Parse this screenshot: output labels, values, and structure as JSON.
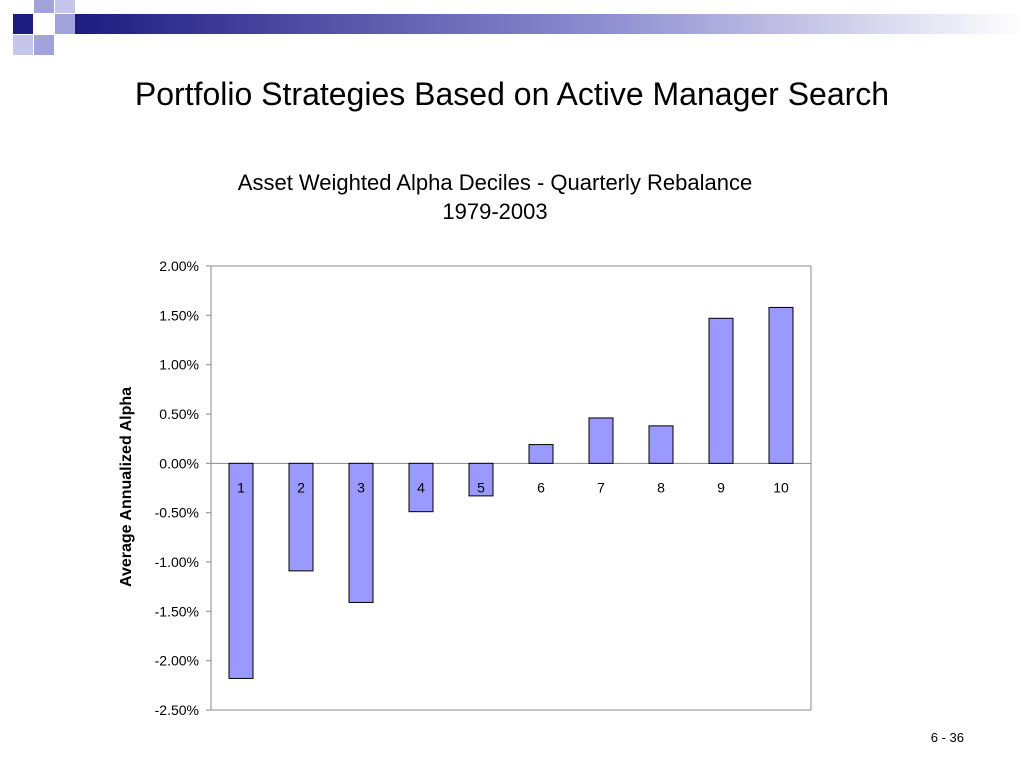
{
  "slide": {
    "title": "Portfolio Strategies Based on Active Manager Search",
    "page_number": "6 - 36"
  },
  "colors": {
    "bar_fill": "#9999ff",
    "bar_stroke": "#000000",
    "header_dark": "#1c1c80",
    "header_light": "#a3a3dc"
  },
  "chart_data": {
    "type": "bar",
    "title": "Asset Weighted Alpha Deciles - Quarterly Rebalance",
    "subtitle": "1979-2003",
    "xlabel": "",
    "ylabel": "Average Annualized Alpha",
    "categories": [
      "1",
      "2",
      "3",
      "4",
      "5",
      "6",
      "7",
      "8",
      "9",
      "10"
    ],
    "values": [
      -2.18,
      -1.09,
      -1.41,
      -0.49,
      -0.33,
      0.19,
      0.46,
      0.38,
      1.47,
      1.58
    ],
    "value_unit": "%",
    "ylim": [
      -2.5,
      2.0
    ],
    "yticks": [
      "2.00%",
      "1.50%",
      "1.00%",
      "0.50%",
      "0.00%",
      "-0.50%",
      "-1.00%",
      "-1.50%",
      "-2.00%",
      "-2.50%"
    ],
    "ytick_values": [
      2.0,
      1.5,
      1.0,
      0.5,
      0.0,
      -0.5,
      -1.0,
      -1.5,
      -2.0,
      -2.5
    ],
    "grid": false,
    "legend": "none"
  }
}
